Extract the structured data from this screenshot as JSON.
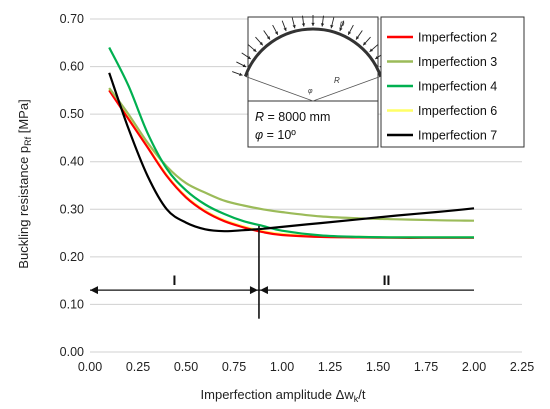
{
  "chart_data": {
    "type": "line",
    "xlabel": "Imperfection amplitude  Δw",
    "xlabel_sub": "k",
    "xlabel_suffix": "/t",
    "ylabel": "Buckling resistance  p",
    "ylabel_sub": "Rf",
    "ylabel_suffix": " [MPa]",
    "xlim": [
      0.0,
      2.25
    ],
    "ylim": [
      0.0,
      0.7
    ],
    "x_ticks": [
      "0.00",
      "0.25",
      "0.50",
      "0.75",
      "1.00",
      "1.25",
      "1.50",
      "1.75",
      "2.00",
      "2.25"
    ],
    "y_ticks": [
      "0.00",
      "0.10",
      "0.20",
      "0.30",
      "0.40",
      "0.50",
      "0.60",
      "0.70"
    ],
    "grid": "horizontal",
    "legend_position": "top-right",
    "series": [
      {
        "name": "Imperfection 2",
        "color": "#ff0000",
        "x": [
          0.1,
          0.2,
          0.3,
          0.4,
          0.5,
          0.6,
          0.7,
          0.8,
          0.9,
          1.0,
          1.2,
          1.4,
          1.6,
          1.8,
          2.0
        ],
        "y": [
          0.55,
          0.49,
          0.43,
          0.37,
          0.325,
          0.295,
          0.275,
          0.262,
          0.252,
          0.246,
          0.242,
          0.241,
          0.24,
          0.24,
          0.24
        ]
      },
      {
        "name": "Imperfection 3",
        "color": "#9bbb59",
        "x": [
          0.1,
          0.2,
          0.3,
          0.4,
          0.5,
          0.6,
          0.7,
          0.8,
          0.9,
          1.0,
          1.2,
          1.4,
          1.6,
          1.8,
          2.0
        ],
        "y": [
          0.555,
          0.5,
          0.44,
          0.39,
          0.355,
          0.335,
          0.318,
          0.308,
          0.3,
          0.294,
          0.285,
          0.281,
          0.279,
          0.277,
          0.276
        ]
      },
      {
        "name": "Imperfection 4",
        "color": "#00b050",
        "x": [
          0.1,
          0.2,
          0.3,
          0.4,
          0.5,
          0.6,
          0.7,
          0.8,
          0.9,
          1.0,
          1.2,
          1.4,
          1.6,
          1.8,
          2.0
        ],
        "y": [
          0.64,
          0.56,
          0.46,
          0.385,
          0.34,
          0.31,
          0.29,
          0.275,
          0.265,
          0.255,
          0.245,
          0.242,
          0.241,
          0.241,
          0.241
        ]
      },
      {
        "name": "Imperfection 6",
        "color": "#ffff66",
        "x": [
          0.1,
          0.2,
          0.3,
          0.4,
          0.5,
          0.6,
          0.7,
          0.8,
          0.9,
          1.0,
          1.2,
          1.4,
          1.6,
          1.8,
          2.0
        ],
        "y": [
          0.552,
          0.492,
          0.432,
          0.372,
          0.327,
          0.297,
          0.277,
          0.264,
          0.254,
          0.248,
          0.243,
          0.242,
          0.241,
          0.241,
          0.241
        ]
      },
      {
        "name": "Imperfection 7",
        "color": "#000000",
        "x": [
          0.1,
          0.2,
          0.3,
          0.4,
          0.5,
          0.6,
          0.7,
          0.8,
          0.9,
          1.0,
          1.2,
          1.4,
          1.6,
          1.8,
          2.0
        ],
        "y": [
          0.587,
          0.47,
          0.37,
          0.3,
          0.272,
          0.258,
          0.254,
          0.256,
          0.259,
          0.263,
          0.271,
          0.279,
          0.287,
          0.294,
          0.302
        ]
      }
    ],
    "annotations": {
      "boundary_x": 0.88,
      "arrow_y": 0.13,
      "arrow_x_range": [
        0.0,
        2.0
      ],
      "region_labels": [
        "I",
        "II"
      ],
      "inset": {
        "radius_text": "R = 8000 mm",
        "angle_text": "φ = 10º",
        "diagram_labels": [
          "p",
          "φ",
          "R"
        ]
      }
    }
  }
}
